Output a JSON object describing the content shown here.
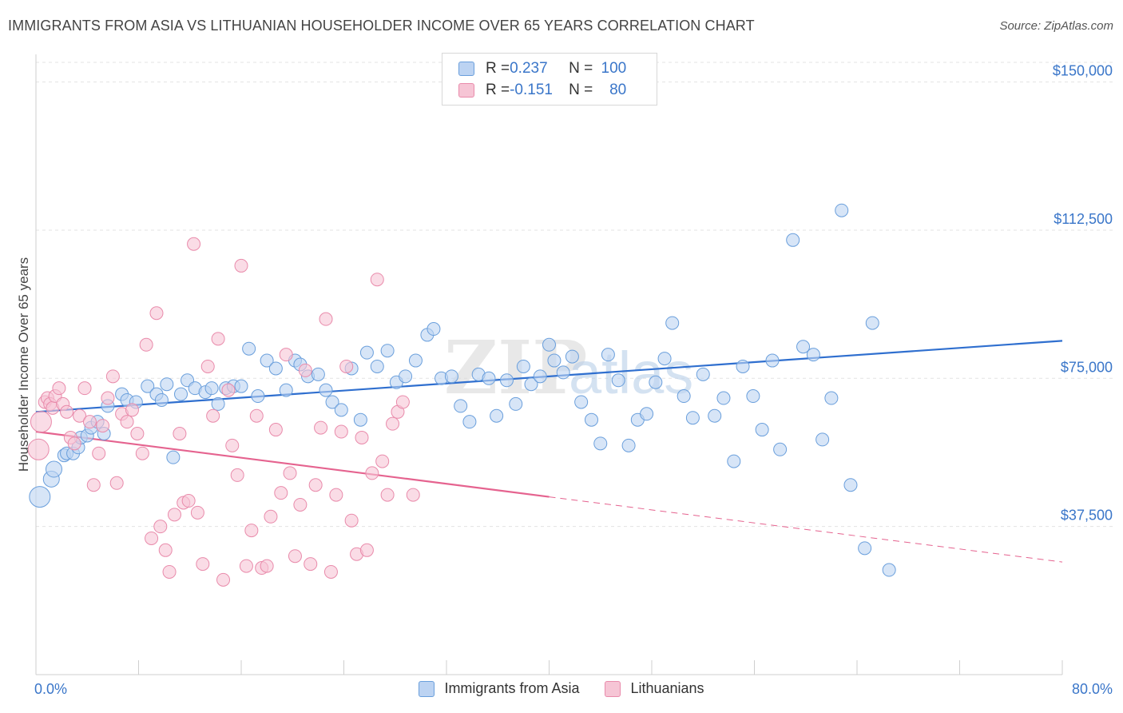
{
  "title": "IMMIGRANTS FROM ASIA VS LITHUANIAN HOUSEHOLDER INCOME OVER 65 YEARS CORRELATION CHART",
  "source": "Source: ZipAtlas.com",
  "colors": {
    "blue": "#6a9fdc",
    "blue_fill": "#bcd3f2",
    "blue_line": "#2f6fcf",
    "pink": "#e98bab",
    "pink_fill": "#f6c5d5",
    "pink_line": "#e5638f",
    "tick": "#3a76c9",
    "grid": "#e3e3e3"
  },
  "legend": {
    "rows": [
      {
        "r_label": "R = ",
        "r_value": "0.237",
        "n_label": "N = ",
        "n_value": "100"
      },
      {
        "r_label": "R = ",
        "r_value": "-0.151",
        "n_label": "N = ",
        "n_value": "80"
      }
    ],
    "series": [
      "Immigrants from Asia",
      "Lithuanians"
    ]
  },
  "watermark": {
    "zip": "ZIP",
    "atlas": "atlas"
  },
  "chart_data": {
    "type": "scatter",
    "xlabel": "",
    "ylabel": "Householder Income Over 65 years",
    "xlim": [
      0,
      80
    ],
    "ylim": [
      0,
      157000
    ],
    "x_tick_labels": [
      "0.0%",
      "80.0%"
    ],
    "y_ticks": [
      {
        "value": 37500,
        "label": "$37,500"
      },
      {
        "value": 75000,
        "label": "$75,000"
      },
      {
        "value": 112500,
        "label": "$112,500"
      },
      {
        "value": 150000,
        "label": "$150,000"
      }
    ],
    "series": [
      {
        "name": "Immigrants from Asia",
        "trend": {
          "x": [
            0,
            80
          ],
          "y": [
            66500,
            84500
          ]
        },
        "points": [
          [
            0.3,
            45000
          ],
          [
            1.2,
            49500
          ],
          [
            1.4,
            52000
          ],
          [
            2.2,
            55500
          ],
          [
            2.4,
            56000
          ],
          [
            2.9,
            56000
          ],
          [
            3.3,
            57500
          ],
          [
            3.5,
            60000
          ],
          [
            4.0,
            60500
          ],
          [
            4.3,
            62500
          ],
          [
            4.8,
            64000
          ],
          [
            5.3,
            61000
          ],
          [
            5.6,
            68000
          ],
          [
            6.7,
            71000
          ],
          [
            7.1,
            69500
          ],
          [
            7.8,
            69000
          ],
          [
            8.7,
            73000
          ],
          [
            9.4,
            71000
          ],
          [
            9.8,
            69500
          ],
          [
            10.2,
            73500
          ],
          [
            10.7,
            55000
          ],
          [
            11.3,
            71000
          ],
          [
            11.8,
            74500
          ],
          [
            12.4,
            72500
          ],
          [
            13.2,
            71500
          ],
          [
            13.7,
            72500
          ],
          [
            14.2,
            68500
          ],
          [
            14.8,
            72500
          ],
          [
            15.4,
            73000
          ],
          [
            16.0,
            73000
          ],
          [
            16.6,
            82500
          ],
          [
            17.3,
            70500
          ],
          [
            18.0,
            79500
          ],
          [
            18.7,
            77500
          ],
          [
            19.5,
            72000
          ],
          [
            20.2,
            79500
          ],
          [
            20.6,
            78500
          ],
          [
            21.2,
            75500
          ],
          [
            22.0,
            76000
          ],
          [
            22.6,
            72000
          ],
          [
            23.1,
            69000
          ],
          [
            23.8,
            67000
          ],
          [
            24.6,
            77500
          ],
          [
            25.3,
            64500
          ],
          [
            25.8,
            81500
          ],
          [
            26.6,
            78000
          ],
          [
            27.4,
            82000
          ],
          [
            28.1,
            74000
          ],
          [
            28.8,
            75500
          ],
          [
            29.6,
            79500
          ],
          [
            30.5,
            86000
          ],
          [
            31.0,
            87500
          ],
          [
            31.6,
            75000
          ],
          [
            32.4,
            75500
          ],
          [
            33.1,
            68000
          ],
          [
            33.8,
            64000
          ],
          [
            34.5,
            76000
          ],
          [
            35.3,
            75000
          ],
          [
            35.9,
            65500
          ],
          [
            36.7,
            74500
          ],
          [
            37.4,
            68500
          ],
          [
            38.0,
            78000
          ],
          [
            38.6,
            73500
          ],
          [
            39.3,
            75500
          ],
          [
            40.0,
            83500
          ],
          [
            40.4,
            79500
          ],
          [
            41.1,
            76500
          ],
          [
            41.8,
            80500
          ],
          [
            42.5,
            69000
          ],
          [
            43.3,
            64500
          ],
          [
            44.0,
            58500
          ],
          [
            44.6,
            81000
          ],
          [
            45.4,
            74500
          ],
          [
            46.2,
            58000
          ],
          [
            46.9,
            64500
          ],
          [
            47.6,
            66000
          ],
          [
            48.3,
            74000
          ],
          [
            49.0,
            80000
          ],
          [
            49.6,
            89000
          ],
          [
            50.5,
            70500
          ],
          [
            51.2,
            65000
          ],
          [
            52.0,
            76000
          ],
          [
            52.9,
            65500
          ],
          [
            53.6,
            70000
          ],
          [
            54.4,
            54000
          ],
          [
            55.1,
            78000
          ],
          [
            55.9,
            70500
          ],
          [
            56.6,
            62000
          ],
          [
            57.4,
            79500
          ],
          [
            58.0,
            57000
          ],
          [
            59.0,
            110000
          ],
          [
            59.8,
            83000
          ],
          [
            60.6,
            81000
          ],
          [
            61.3,
            59500
          ],
          [
            62.0,
            70000
          ],
          [
            62.8,
            117500
          ],
          [
            63.5,
            48000
          ],
          [
            64.6,
            32000
          ],
          [
            65.2,
            89000
          ],
          [
            66.5,
            26500
          ]
        ]
      },
      {
        "name": "Lithuanians",
        "trend": {
          "x": [
            0,
            80
          ],
          "y": [
            61500,
            28500
          ]
        },
        "trend_solid_until": 40,
        "points": [
          [
            0.2,
            57000
          ],
          [
            0.4,
            64000
          ],
          [
            0.7,
            69000
          ],
          [
            0.9,
            70000
          ],
          [
            1.1,
            68500
          ],
          [
            1.3,
            67500
          ],
          [
            1.5,
            70500
          ],
          [
            1.8,
            72500
          ],
          [
            2.1,
            68500
          ],
          [
            2.4,
            66500
          ],
          [
            2.7,
            60000
          ],
          [
            3.0,
            58500
          ],
          [
            3.4,
            65500
          ],
          [
            3.8,
            72500
          ],
          [
            4.2,
            64000
          ],
          [
            4.5,
            48000
          ],
          [
            4.9,
            56000
          ],
          [
            5.2,
            63000
          ],
          [
            5.6,
            70000
          ],
          [
            6.0,
            75500
          ],
          [
            6.3,
            48500
          ],
          [
            6.7,
            66000
          ],
          [
            7.1,
            64000
          ],
          [
            7.5,
            67000
          ],
          [
            7.9,
            61000
          ],
          [
            8.3,
            56000
          ],
          [
            8.6,
            83500
          ],
          [
            9.0,
            34500
          ],
          [
            9.4,
            91500
          ],
          [
            9.7,
            37500
          ],
          [
            10.1,
            31500
          ],
          [
            10.4,
            26000
          ],
          [
            10.8,
            40500
          ],
          [
            11.2,
            61000
          ],
          [
            11.5,
            43500
          ],
          [
            11.9,
            44000
          ],
          [
            12.3,
            109000
          ],
          [
            12.6,
            41000
          ],
          [
            13.0,
            28000
          ],
          [
            13.4,
            78000
          ],
          [
            13.8,
            65500
          ],
          [
            14.2,
            85000
          ],
          [
            14.6,
            24000
          ],
          [
            15.0,
            72000
          ],
          [
            15.3,
            58000
          ],
          [
            15.7,
            50500
          ],
          [
            16.0,
            103500
          ],
          [
            16.4,
            27500
          ],
          [
            16.8,
            36500
          ],
          [
            17.2,
            65500
          ],
          [
            17.6,
            27000
          ],
          [
            18.0,
            27500
          ],
          [
            18.3,
            40000
          ],
          [
            18.7,
            62000
          ],
          [
            19.1,
            46000
          ],
          [
            19.5,
            81000
          ],
          [
            19.8,
            51000
          ],
          [
            20.2,
            30000
          ],
          [
            20.6,
            43000
          ],
          [
            21.0,
            77000
          ],
          [
            21.4,
            28000
          ],
          [
            21.8,
            48000
          ],
          [
            22.2,
            62500
          ],
          [
            22.6,
            90000
          ],
          [
            23.0,
            26000
          ],
          [
            23.4,
            45500
          ],
          [
            23.8,
            61500
          ],
          [
            24.2,
            78000
          ],
          [
            24.6,
            39000
          ],
          [
            25.0,
            30500
          ],
          [
            25.4,
            60000
          ],
          [
            25.8,
            31500
          ],
          [
            26.2,
            51000
          ],
          [
            26.6,
            100000
          ],
          [
            27.0,
            54000
          ],
          [
            27.4,
            45500
          ],
          [
            27.8,
            63500
          ],
          [
            28.2,
            66500
          ],
          [
            28.6,
            69000
          ],
          [
            29.4,
            45500
          ]
        ]
      }
    ]
  }
}
